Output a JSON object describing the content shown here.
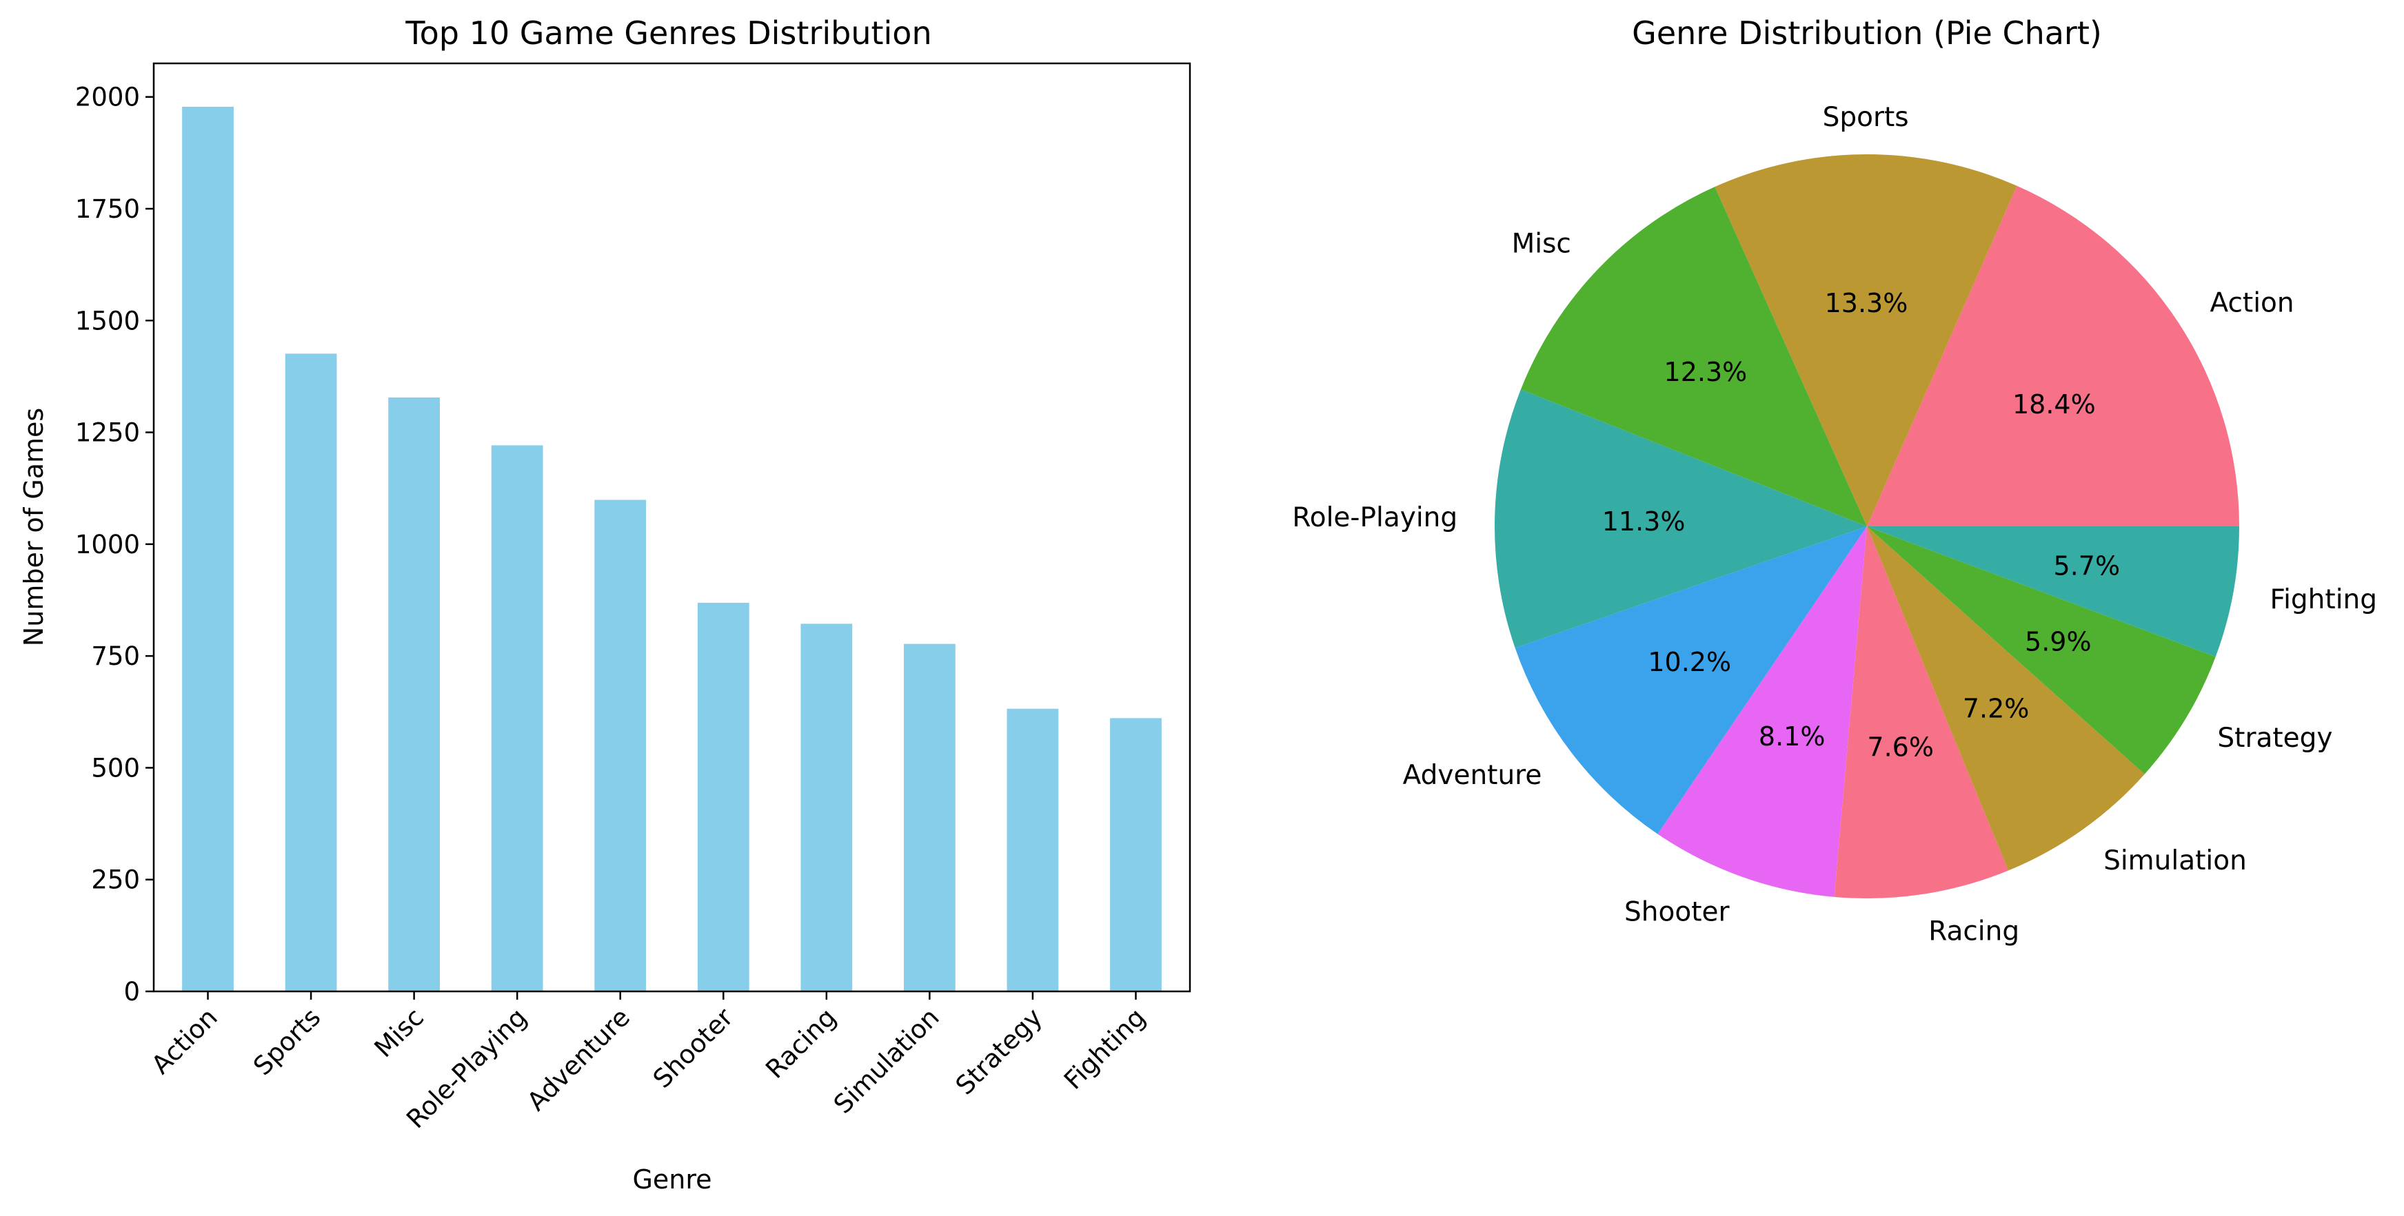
{
  "chart_data": [
    {
      "type": "bar",
      "title": "Top 10 Game Genres Distribution",
      "xlabel": "Genre",
      "ylabel": "Number of Games",
      "categories": [
        "Action",
        "Sports",
        "Misc",
        "Role-Playing",
        "Adventure",
        "Shooter",
        "Racing",
        "Simulation",
        "Strategy",
        "Fighting"
      ],
      "values": [
        1978,
        1426,
        1328,
        1221,
        1099,
        869,
        822,
        777,
        632,
        611
      ],
      "ylim": [
        0,
        2075
      ],
      "yticks": [
        0,
        250,
        500,
        750,
        1000,
        1250,
        1500,
        1750,
        2000
      ],
      "grid": false,
      "bar_color": "#87ceeb"
    },
    {
      "type": "pie",
      "title": "Genre Distribution (Pie Chart)",
      "labels": [
        "Action",
        "Sports",
        "Misc",
        "Role-Playing",
        "Adventure",
        "Shooter",
        "Racing",
        "Simulation",
        "Strategy",
        "Fighting"
      ],
      "values": [
        18.4,
        13.3,
        12.3,
        11.3,
        10.2,
        8.1,
        7.6,
        7.2,
        5.9,
        5.7
      ],
      "percent_labels": [
        "18.4%",
        "13.3%",
        "12.3%",
        "11.3%",
        "10.2%",
        "8.1%",
        "7.6%",
        "7.2%",
        "5.9%",
        "5.7%"
      ],
      "colors": [
        "#f77189",
        "#bb9832",
        "#50b131",
        "#36ada4",
        "#3ba3ec",
        "#e866f4",
        "#f77189",
        "#bb9832",
        "#50b131",
        "#36ada4"
      ],
      "start_angle_deg": 0,
      "direction": "counterclockwise"
    }
  ]
}
